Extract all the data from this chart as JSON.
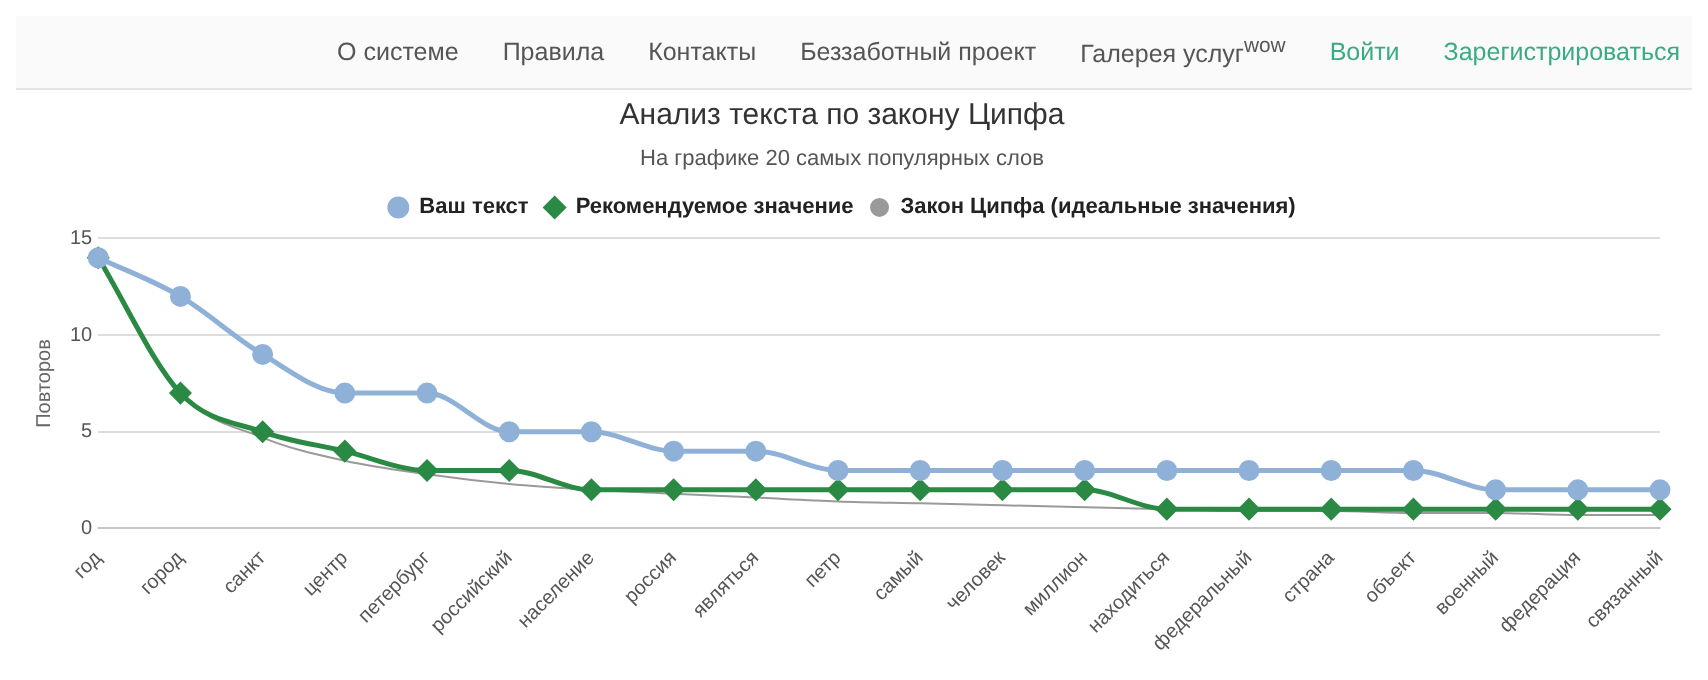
{
  "chart_data": {
    "type": "line",
    "title": "Анализ текста по закону Ципфа",
    "subtitle": "На графике 20 самых популярных слов",
    "ylabel": "Повторов",
    "annotations": [
      "О системе",
      "Правила",
      "Контакты",
      "Беззаботный проект",
      "Галерея услуг$^{wow}$",
      "Войти",
      "Зарегистрироваться"
    ],
    "categories": [
      "год",
      "город",
      "санкт",
      "центр",
      "петербург",
      "российский",
      "население",
      "россия",
      "являться",
      "петр",
      "самый",
      "человек",
      "миллион",
      "находиться",
      "федеральный",
      "страна",
      "объект",
      "военный",
      "федерация",
      "связанный"
    ],
    "series": [
      {
        "name": "Ваш текст",
        "color": "#8fb1d8",
        "marker": "circle",
        "values": [
          14,
          12,
          9,
          7,
          7,
          5,
          5,
          4,
          4,
          3,
          3,
          3,
          3,
          3,
          3,
          3,
          3,
          2,
          2,
          2
        ]
      },
      {
        "name": "Рекомендуемое значение",
        "color": "#2a8a44",
        "marker": "diamond",
        "values": [
          14,
          7,
          5,
          4,
          3,
          3,
          2,
          2,
          2,
          2,
          2,
          2,
          2,
          1,
          1,
          1,
          1,
          1,
          1,
          1
        ]
      },
      {
        "name": "Закон Ципфа (идеальные значения)",
        "color": "#9a9a9a",
        "marker": "none",
        "values": [
          14,
          7,
          4.7,
          3.5,
          2.8,
          2.3,
          2,
          1.8,
          1.6,
          1.4,
          1.3,
          1.2,
          1.1,
          1,
          0.9,
          0.9,
          0.8,
          0.8,
          0.7,
          0.7
        ]
      }
    ],
    "ylim": [
      0,
      15
    ],
    "yticks": [
      0,
      5,
      10,
      15
    ],
    "grid": "y",
    "legend": "top"
  }
}
